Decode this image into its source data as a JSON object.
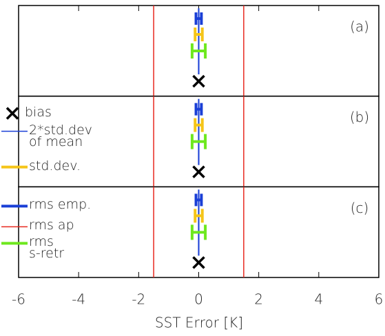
{
  "chart_data": {
    "type": "errorbar",
    "x_label": "SST Error [K]",
    "categories": [
      "(a)",
      "(b)",
      "(c)"
    ],
    "xlim": [
      -6,
      6
    ],
    "xticks": [
      -6,
      -4,
      -2,
      0,
      2,
      4,
      6
    ],
    "series": [
      {
        "name": "bias",
        "color": "#000000",
        "values": [
          0,
          0,
          0
        ]
      },
      {
        "name": "2*std.dev\nof mean",
        "color": "#1a3fd6",
        "values": [
          0.01,
          0.01,
          0.01
        ]
      },
      {
        "name": "std.dev.",
        "color": "#f5c518",
        "values": [
          0.12,
          0.12,
          0.12
        ]
      },
      {
        "name": "rms emp.",
        "color": "#1a3fd6",
        "values": [
          0.09,
          0.09,
          0.09
        ]
      },
      {
        "name": "rms ap",
        "color": "#e8281e",
        "values": [
          1.5,
          1.5,
          1.5
        ]
      },
      {
        "name": "rms\ns-retr",
        "color": "#6ee81e",
        "values": [
          0.22,
          0.22,
          0.22
        ]
      }
    ]
  }
}
